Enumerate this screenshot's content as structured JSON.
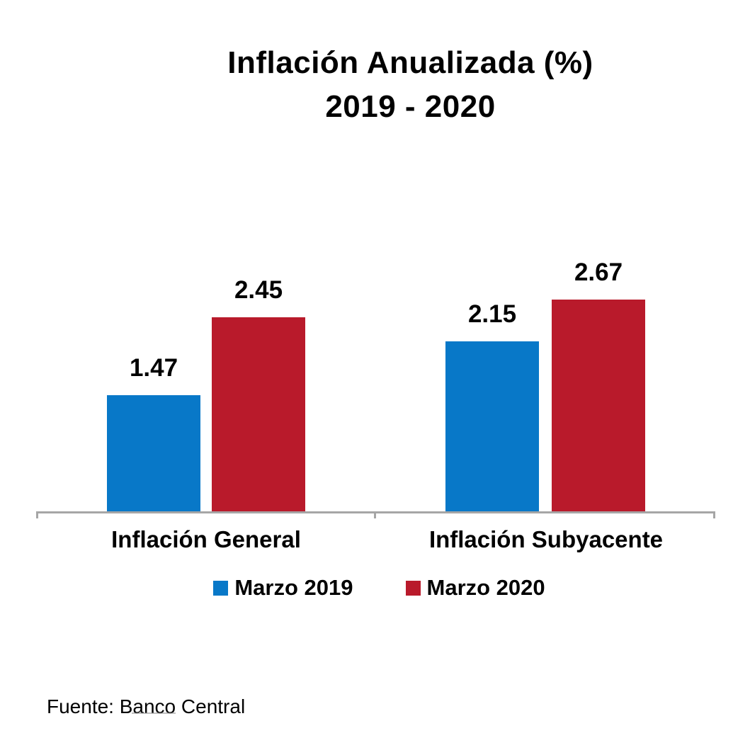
{
  "colors": {
    "marzo_2019": "#0878C8",
    "marzo_2020": "#B91A2B",
    "axis": "#A6A6A6",
    "text": "#000000",
    "background": "#FFFFFF"
  },
  "chart_data": {
    "type": "bar",
    "title": "Inflación Anualizada (%)",
    "subtitle": "2019 - 2020",
    "categories": [
      "Inflación General",
      "Inflación Subyacente"
    ],
    "series": [
      {
        "name": "Marzo 2019",
        "color": "#0878C8",
        "values": [
          1.47,
          2.15
        ]
      },
      {
        "name": "Marzo 2020",
        "color": "#B91A2B",
        "values": [
          2.45,
          2.67
        ]
      }
    ],
    "data_labels": [
      [
        "1.47",
        "2.45"
      ],
      [
        "2.15",
        "2.67"
      ]
    ],
    "ylim": [
      0,
      3
    ],
    "grid": false,
    "y_axis_visible": false,
    "legend_position": "bottom",
    "source": "Fuente: Banco Central"
  }
}
